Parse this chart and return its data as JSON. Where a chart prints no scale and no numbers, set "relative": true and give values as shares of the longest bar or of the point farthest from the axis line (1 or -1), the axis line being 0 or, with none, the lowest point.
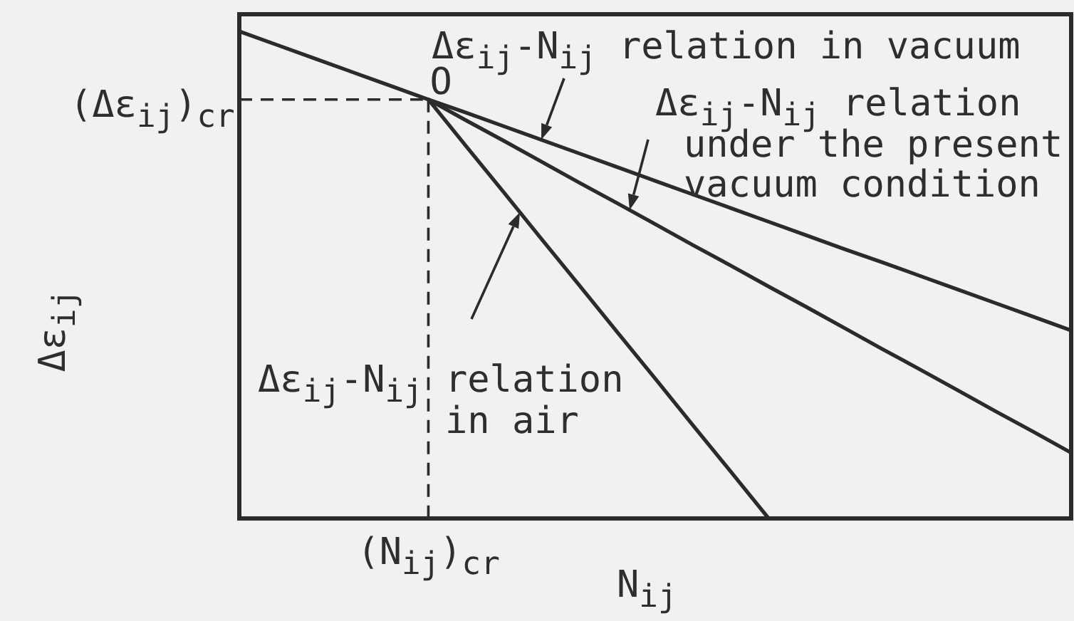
{
  "chart_data": {
    "type": "line",
    "relative": true,
    "xlabel": "N$_{ij}$",
    "ylabel": "Δε$_{ij}$",
    "categories": [
      null,
      null,
      null,
      null,
      null,
      null,
      null,
      null,
      null,
      null,
      null,
      null,
      null,
      null,
      null,
      null,
      null,
      null,
      null,
      null,
      null,
      null,
      null
    ],
    "series": [
      {
        "name": "Δε$_{ij}$-N$_{ij}$ relation in vacuum",
        "color": "#2b2b2b",
        "values": [
          1,
          0.972,
          0.944,
          0.916,
          0.888,
          0.86,
          0.833,
          0.805,
          0.777,
          0.749,
          0.721,
          0.693,
          0.665,
          0.637,
          0.609,
          0.581,
          0.553,
          0.526,
          0.498,
          0.47,
          0.442,
          0.414,
          0.386
        ]
      },
      {
        "name": "Δε$_{ij}$-N$_{ij}$ relation under the present vacuum condition",
        "color": "#2b2b2b",
        "values": [
          null,
          null,
          null,
          null,
          null,
          0.86,
          0.817,
          0.775,
          0.732,
          0.689,
          0.647,
          0.604,
          0.561,
          0.519,
          0.476,
          0.434,
          0.391,
          0.348,
          0.306,
          0.263,
          0.22,
          0.178,
          0.135
        ]
      },
      {
        "name": "Δε$_{ij}$-N$_{ij}$ relation in air",
        "color": "#2b2b2b",
        "values": [
          null,
          null,
          null,
          null,
          null,
          0.86,
          0.764,
          0.669,
          0.573,
          0.478,
          0.382,
          0.287,
          0.191,
          0.096,
          0,
          null,
          null,
          null,
          null,
          null,
          null,
          null,
          null
        ]
      }
    ],
    "ref_lines": [
      {
        "axis": "y",
        "value": 0.86,
        "label": "(Δε$_{ij}$)$_{cr}$",
        "line_style": "dashed"
      }
    ],
    "annotations": [
      {
        "text": "O",
        "y": 0.86
      },
      "(N$_{ij}$)$_{cr}$"
    ],
    "marker": "none",
    "line_style": "solid"
  }
}
